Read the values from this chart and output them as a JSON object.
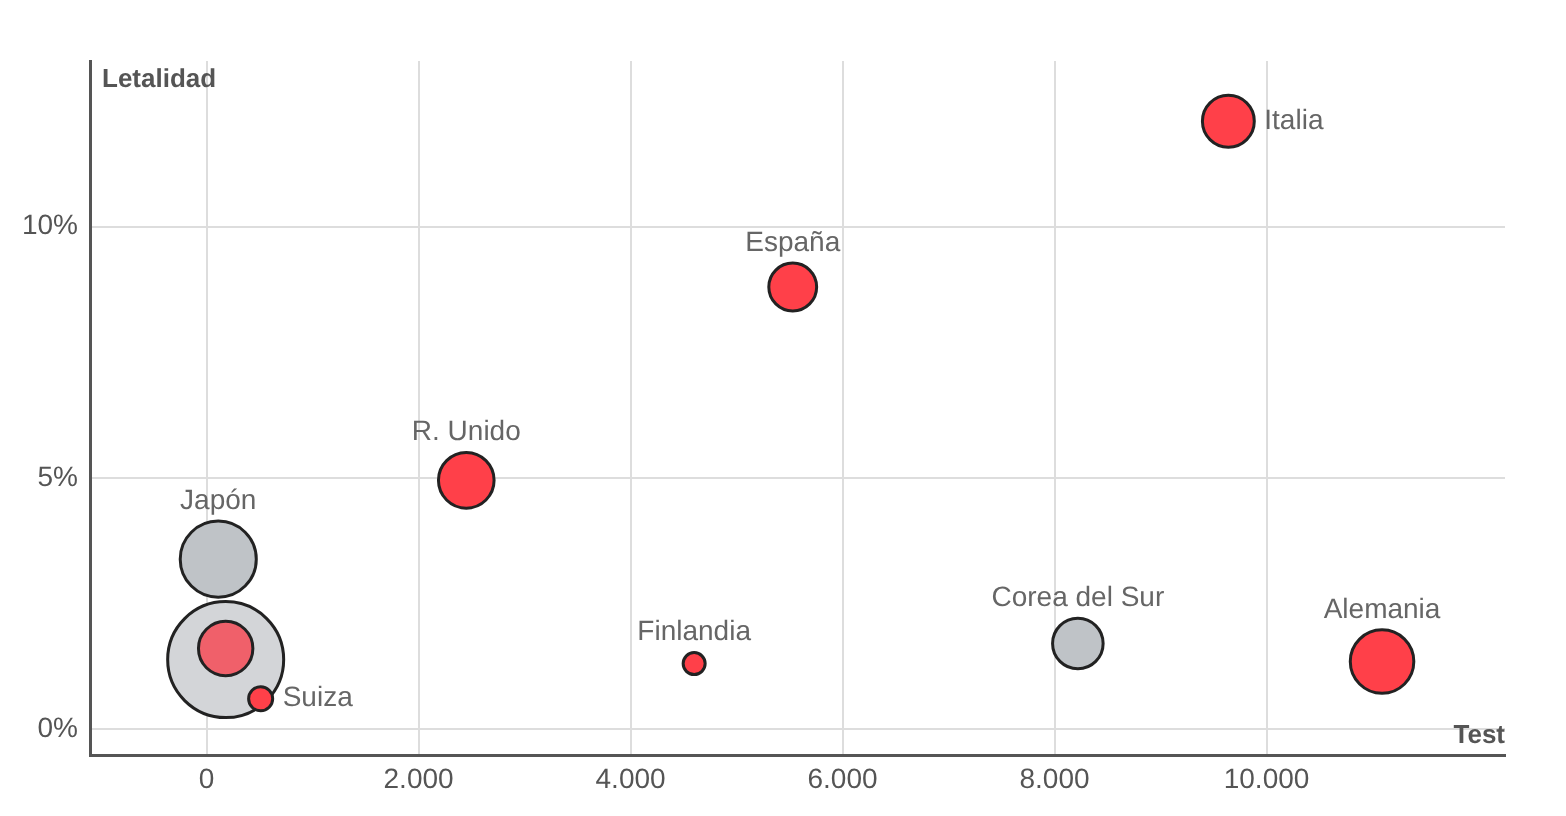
{
  "chart_data": {
    "type": "bubble",
    "xlabel": "Test",
    "ylabel": "Letalidad",
    "xlim": [
      -1100,
      12250
    ],
    "ylim": [
      -0.52,
      13.3
    ],
    "xticks": [
      {
        "value": 0,
        "label": "0"
      },
      {
        "value": 2000,
        "label": "2.000"
      },
      {
        "value": 4000,
        "label": "4.000"
      },
      {
        "value": 6000,
        "label": "6.000"
      },
      {
        "value": 8000,
        "label": "8.000"
      },
      {
        "value": 10000,
        "label": "10.000"
      }
    ],
    "yticks": [
      {
        "value": 0,
        "label": "0%"
      },
      {
        "value": 5,
        "label": "5%"
      },
      {
        "value": 10,
        "label": "10%"
      }
    ],
    "grid": true,
    "legend": false,
    "series": [
      {
        "color": "#d3d5d8",
        "x": [
          180
        ],
        "values": [
          1.38
        ],
        "sizes": [
          1
        ]
      },
      {
        "color": "#f0606a",
        "x": [
          180
        ],
        "values": [
          1.6
        ],
        "sizes": [
          0.22
        ]
      },
      {
        "color": "#bfc3c7",
        "x": [
          110,
          8220
        ],
        "values": [
          3.38,
          1.7
        ],
        "sizes": [
          0.43,
          0.19
        ]
      },
      {
        "color": "#ff4049",
        "x": [
          9640,
          5530,
          2450,
          510,
          4600,
          11090
        ],
        "values": [
          12.1,
          8.8,
          4.95,
          0.6,
          1.3,
          1.34
        ],
        "sizes": [
          0.2,
          0.17,
          0.23,
          0.043,
          0.036,
          0.3
        ]
      }
    ],
    "annotations": [
      {
        "text": "Italia",
        "x": 9640,
        "y": 12.1
      },
      {
        "text": "España",
        "x": 5530,
        "y": 8.8
      },
      {
        "text": "R. Unido",
        "x": 2450,
        "y": 4.95
      },
      {
        "text": "Japón",
        "x": 110,
        "y": 3.38
      },
      {
        "text": "Suiza",
        "x": 510,
        "y": 0.6
      },
      {
        "text": "Finlandia",
        "x": 4600,
        "y": 1.3
      },
      {
        "text": "Corea del Sur",
        "x": 8220,
        "y": 1.7
      },
      {
        "text": "Alemania",
        "x": 11090,
        "y": 1.34
      }
    ]
  }
}
